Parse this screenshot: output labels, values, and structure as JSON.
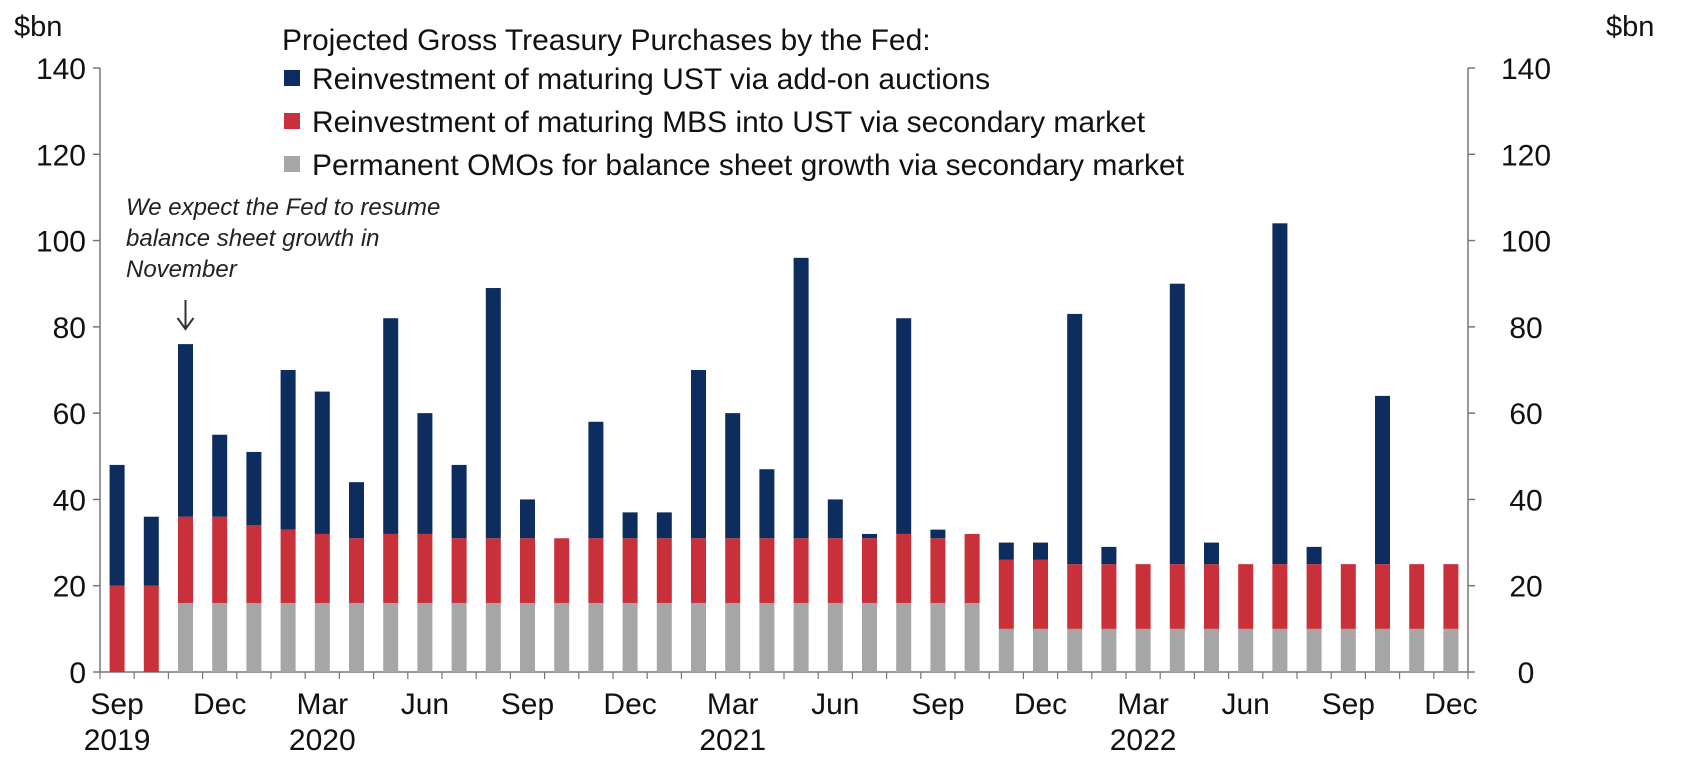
{
  "chart_data": {
    "type": "bar",
    "stacked": true,
    "title": "Projected Gross Treasury Purchases by the Fed:",
    "ylabel_left": "$bn",
    "ylabel_right": "$bn",
    "ylim": [
      0,
      140
    ],
    "yticks": [
      0,
      20,
      40,
      60,
      80,
      100,
      120,
      140
    ],
    "grid": false,
    "legend_position": "top",
    "months": [
      "Sep 2019",
      "Oct 2019",
      "Nov 2019",
      "Dec 2019",
      "Jan 2020",
      "Feb 2020",
      "Mar 2020",
      "Apr 2020",
      "May 2020",
      "Jun 2020",
      "Jul 2020",
      "Aug 2020",
      "Sep 2020",
      "Oct 2020",
      "Nov 2020",
      "Dec 2020",
      "Jan 2021",
      "Feb 2021",
      "Mar 2021",
      "Apr 2021",
      "May 2021",
      "Jun 2021",
      "Jul 2021",
      "Aug 2021",
      "Sep 2021",
      "Oct 2021",
      "Nov 2021",
      "Dec 2021",
      "Jan 2022",
      "Feb 2022",
      "Mar 2022",
      "Apr 2022",
      "May 2022",
      "Jun 2022",
      "Jul 2022",
      "Aug 2022",
      "Sep 2022",
      "Oct 2022",
      "Nov 2022",
      "Dec 2022"
    ],
    "x_tick_labels": [
      {
        "index": 0,
        "label": "Sep",
        "year": "2019"
      },
      {
        "index": 3,
        "label": "Dec"
      },
      {
        "index": 6,
        "label": "Mar",
        "year": "2020"
      },
      {
        "index": 9,
        "label": "Jun"
      },
      {
        "index": 12,
        "label": "Sep"
      },
      {
        "index": 15,
        "label": "Dec"
      },
      {
        "index": 18,
        "label": "Mar",
        "year": "2021"
      },
      {
        "index": 21,
        "label": "Jun"
      },
      {
        "index": 24,
        "label": "Sep"
      },
      {
        "index": 27,
        "label": "Dec"
      },
      {
        "index": 30,
        "label": "Mar",
        "year": "2022"
      },
      {
        "index": 33,
        "label": "Jun"
      },
      {
        "index": 36,
        "label": "Sep"
      },
      {
        "index": 39,
        "label": "Dec"
      }
    ],
    "series": [
      {
        "name": "Permanent OMOs for balance sheet growth via secondary market",
        "color": "#a6a6a6",
        "values": [
          0,
          0,
          16,
          16,
          16,
          16,
          16,
          16,
          16,
          16,
          16,
          16,
          16,
          16,
          16,
          16,
          16,
          16,
          16,
          16,
          16,
          16,
          16,
          16,
          16,
          16,
          10,
          10,
          10,
          10,
          10,
          10,
          10,
          10,
          10,
          10,
          10,
          10,
          10,
          10
        ]
      },
      {
        "name": "Reinvestment of maturing MBS into UST via secondary market",
        "color": "#c8303a",
        "values": [
          20,
          20,
          20,
          20,
          18,
          17,
          16,
          15,
          16,
          16,
          15,
          15,
          15,
          15,
          15,
          15,
          15,
          15,
          15,
          15,
          15,
          15,
          15,
          16,
          15,
          16,
          16,
          16,
          15,
          15,
          15,
          15,
          15,
          15,
          15,
          15,
          15,
          15,
          15,
          15
        ]
      },
      {
        "name": "Reinvestment of maturing UST via add-on auctions",
        "color": "#0c2d5e",
        "values": [
          28,
          16,
          40,
          19,
          17,
          37,
          33,
          13,
          50,
          28,
          17,
          58,
          9,
          0,
          27,
          6,
          6,
          39,
          29,
          16,
          65,
          9,
          1,
          50,
          2,
          0,
          4,
          4,
          58,
          4,
          0,
          65,
          5,
          0,
          79,
          4,
          0,
          39,
          0,
          0
        ]
      }
    ],
    "legend": [
      {
        "label": "Reinvestment of maturing UST via add-on auctions",
        "color": "#0c2d5e"
      },
      {
        "label": "Reinvestment of maturing MBS into UST via secondary market",
        "color": "#c8303a"
      },
      {
        "label": "Permanent OMOs for balance sheet growth via secondary market",
        "color": "#a6a6a6"
      }
    ],
    "annotation": {
      "lines": [
        "We expect the Fed  to resume",
        "balance sheet growth in",
        "November"
      ],
      "arrow_index": 2
    }
  }
}
